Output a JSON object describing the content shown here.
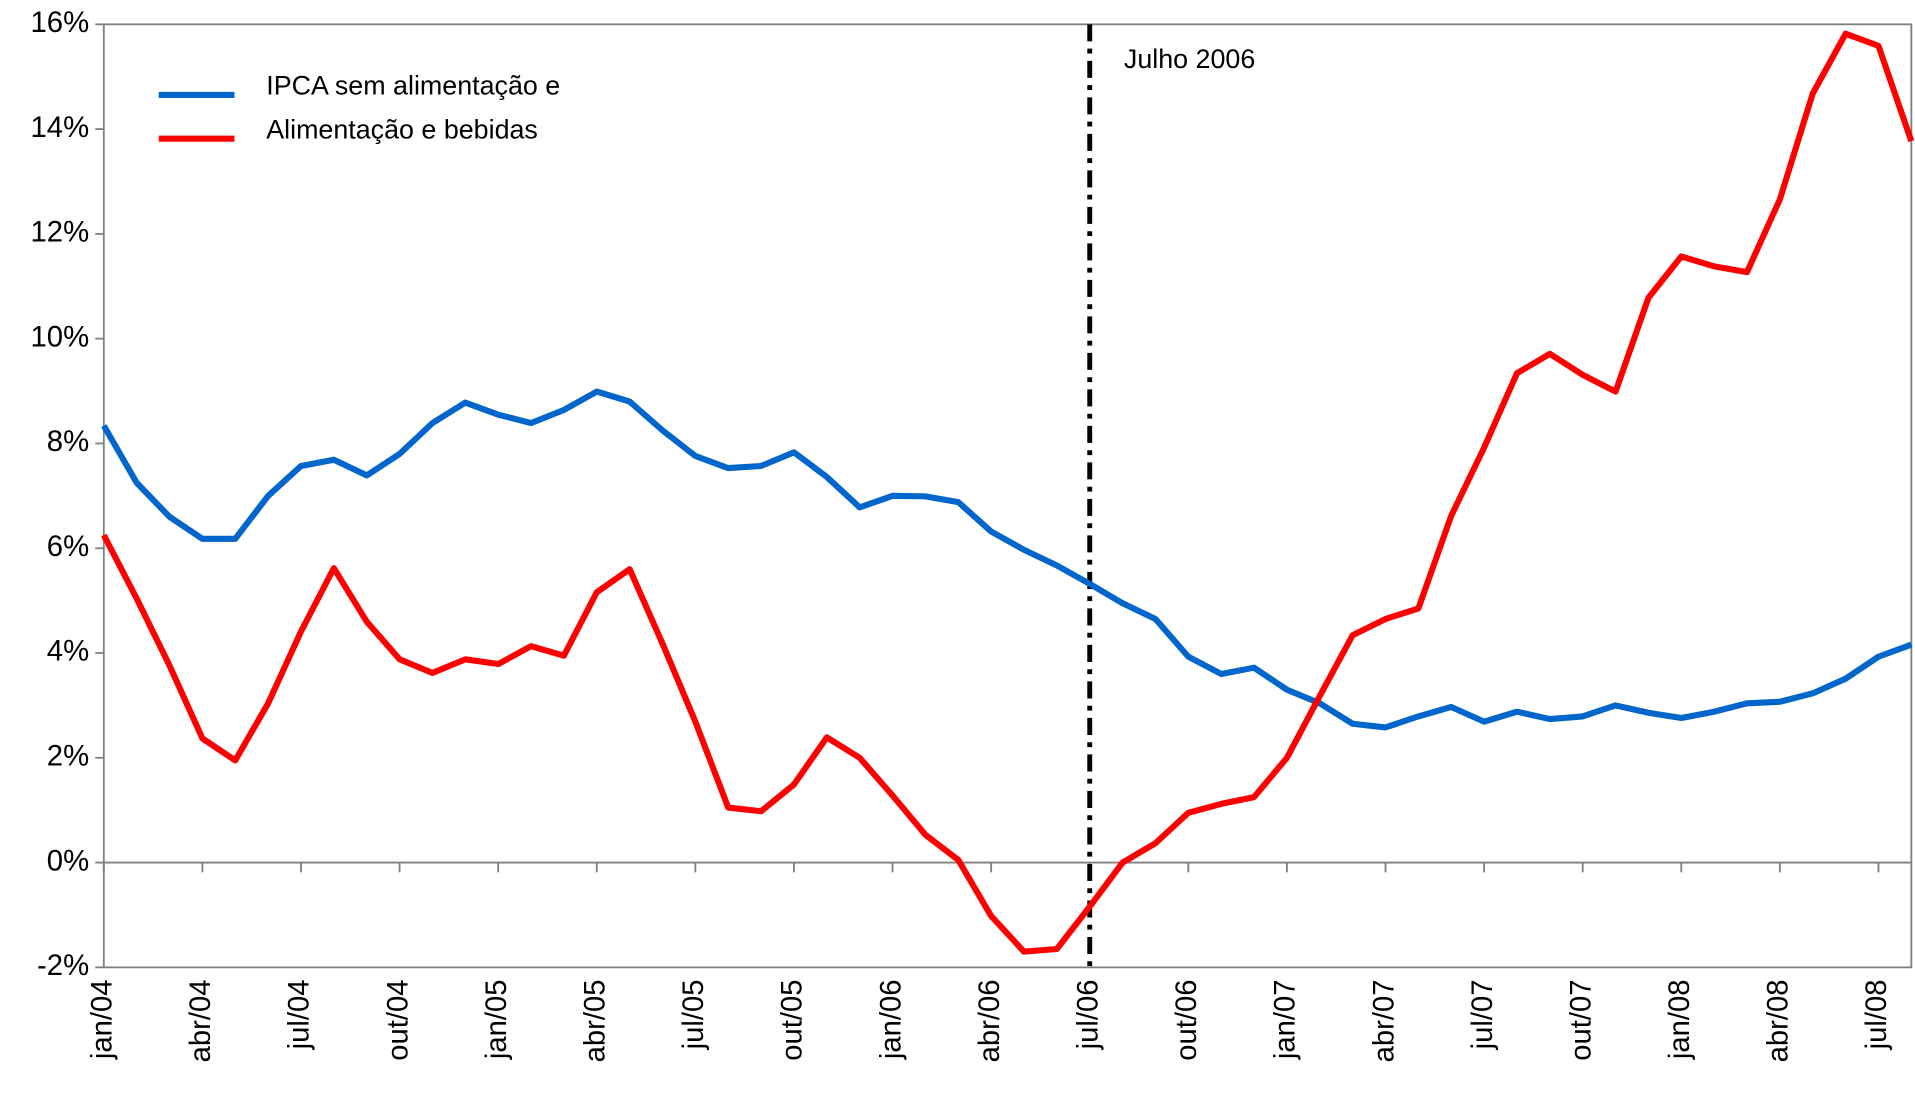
{
  "chart_data": {
    "type": "line",
    "categories": [
      "jan/04",
      null,
      null,
      "abr/04",
      null,
      null,
      "jul/04",
      null,
      null,
      "out/04",
      null,
      null,
      "jan/05",
      null,
      null,
      "abr/05",
      null,
      null,
      "jul/05",
      null,
      null,
      "out/05",
      null,
      null,
      "jan/06",
      null,
      null,
      "abr/06",
      null,
      null,
      "jul/06",
      null,
      null,
      "out/06",
      null,
      null,
      "jan/07",
      null,
      null,
      "abr/07",
      null,
      null,
      "jul/07",
      null,
      null,
      "out/07",
      null,
      null,
      "jan/08",
      null,
      null,
      "abr/08",
      null,
      null,
      "jul/08",
      null
    ],
    "series": [
      {
        "name": "IPCA sem alimentação e",
        "color": "#0066cc",
        "values": [
          8.34,
          7.25,
          6.6,
          6.18,
          6.18,
          7.0,
          7.57,
          7.69,
          7.39,
          7.8,
          8.39,
          8.78,
          8.55,
          8.39,
          8.64,
          8.99,
          8.8,
          8.25,
          7.76,
          7.53,
          7.57,
          7.83,
          7.36,
          6.78,
          7.0,
          6.99,
          6.88,
          6.32,
          5.97,
          5.67,
          5.32,
          4.95,
          4.65,
          3.93,
          3.6,
          3.72,
          3.3,
          3.04,
          2.65,
          2.58,
          2.79,
          2.97,
          2.69,
          2.88,
          2.74,
          2.79,
          3.0,
          2.86,
          2.76,
          2.88,
          3.04,
          3.07,
          3.23,
          3.51,
          3.93,
          4.16
        ]
      },
      {
        "name": "Alimentação e bebidas",
        "color": "#ff0000",
        "values": [
          6.25,
          5.04,
          3.76,
          2.37,
          1.95,
          3.04,
          4.41,
          5.62,
          4.6,
          3.88,
          3.62,
          3.88,
          3.79,
          4.13,
          3.95,
          5.16,
          5.6,
          4.18,
          2.69,
          1.05,
          0.98,
          1.49,
          2.39,
          2.0,
          1.28,
          0.53,
          0.05,
          -1.02,
          -1.7,
          -1.65,
          -0.84,
          0.0,
          0.37,
          0.95,
          1.12,
          1.25,
          2.0,
          3.18,
          4.34,
          4.65,
          4.85,
          6.62,
          7.92,
          9.34,
          9.71,
          9.31,
          8.99,
          10.78,
          11.57,
          11.38,
          11.27,
          12.66,
          14.68,
          15.82,
          15.59,
          13.77
        ]
      }
    ],
    "ylim": [
      -2,
      16
    ],
    "yticks": [
      {
        "value": -2,
        "label": "-2%"
      },
      {
        "value": 0,
        "label": "0%"
      },
      {
        "value": 2,
        "label": "2%"
      },
      {
        "value": 4,
        "label": "4%"
      },
      {
        "value": 6,
        "label": "6%"
      },
      {
        "value": 8,
        "label": "8%"
      },
      {
        "value": 10,
        "label": "10%"
      },
      {
        "value": 12,
        "label": "12%"
      },
      {
        "value": 14,
        "label": "14%"
      },
      {
        "value": 16,
        "label": "16%"
      }
    ],
    "grid": false,
    "legend": "top-left",
    "vline": {
      "x": "jul/06",
      "label": "Julho 2006"
    }
  }
}
